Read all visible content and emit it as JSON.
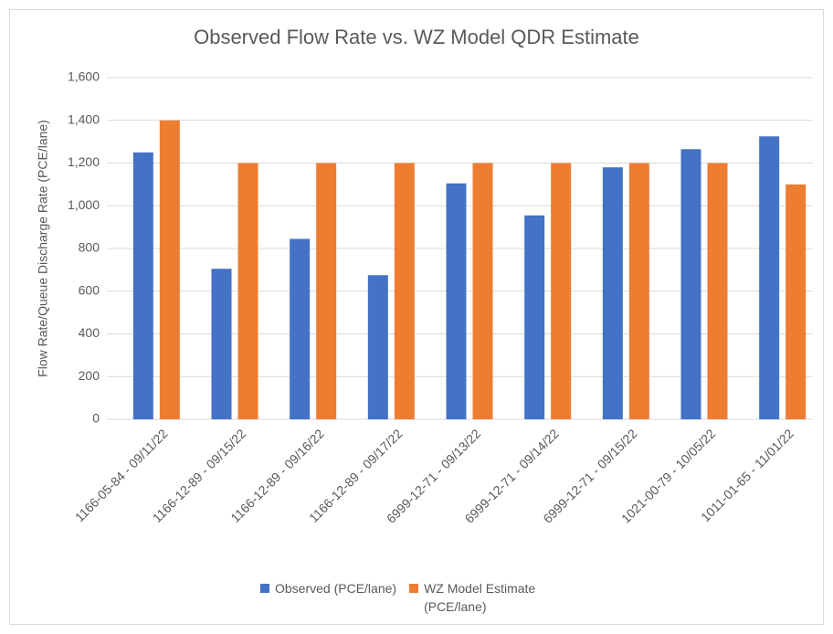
{
  "chart_data": {
    "type": "bar",
    "title": "Observed Flow Rate vs. WZ Model QDR Estimate",
    "y_label": "Flow Rate/Queue Discharge Rate (PCE/lane)",
    "categories": [
      "1166-05-84 - 09/11/22",
      "1166-12-89 - 09/15/22",
      "1166-12-89 - 09/16/22",
      "1166-12-89 - 09/17/22",
      "6999-12-71 - 09/13/22",
      "6999-12-71 - 09/14/22",
      "6999-12-71 - 09/15/22",
      "1021-00-79 - 10/05/22",
      "1011-01-65 - 11/01/22"
    ],
    "series": [
      {
        "name": "Observed (PCE/lane)",
        "color": "#4472c4",
        "values": [
          1250,
          705,
          845,
          675,
          1105,
          955,
          1180,
          1265,
          1325
        ]
      },
      {
        "name": "WZ Model Estimate (PCE/lane)",
        "color": "#ed7d31",
        "values": [
          1400,
          1200,
          1200,
          1200,
          1200,
          1200,
          1200,
          1200,
          1100
        ]
      }
    ],
    "ylim": [
      0,
      1600
    ],
    "yticks": [
      0,
      200,
      400,
      600,
      800,
      {
        "value": 1000,
        "label": "1,000"
      },
      {
        "value": 1200,
        "label": "1,200"
      },
      {
        "value": 1400,
        "label": "1,400"
      },
      {
        "value": 1600,
        "label": "1,600"
      }
    ],
    "grid": true,
    "legend": "bottom"
  }
}
